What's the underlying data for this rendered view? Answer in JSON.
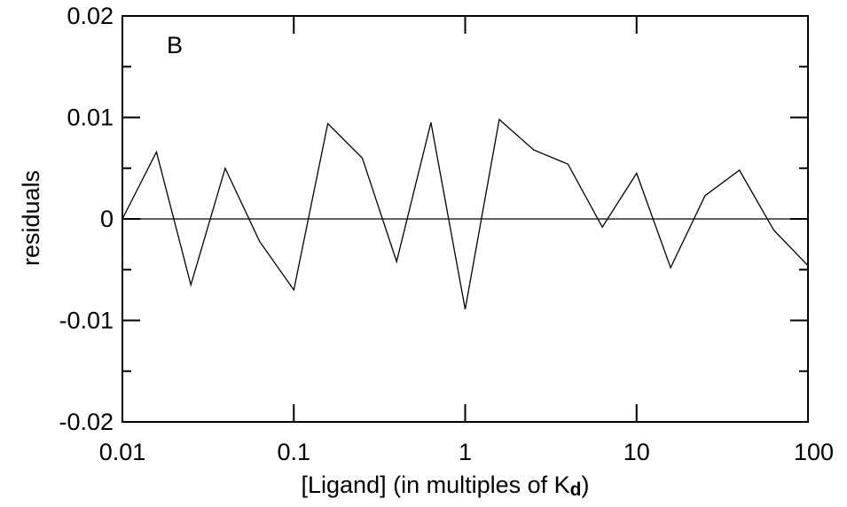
{
  "chart_data": {
    "type": "line",
    "panel_label": "B",
    "xlabel": "[Ligand]   (in multiples of K",
    "xlabel_subscript": "d",
    "xlabel_suffix": ")",
    "ylabel": "residuals",
    "xscale": "log",
    "xlim": [
      0.01,
      100
    ],
    "ylim": [
      -0.02,
      0.02
    ],
    "x_ticks": [
      0.01,
      0.1,
      1,
      10,
      100
    ],
    "x_tick_labels": [
      "0.01",
      "0.1",
      "1",
      "10",
      "100"
    ],
    "y_ticks": [
      -0.02,
      -0.01,
      0,
      0.01,
      0.02
    ],
    "y_tick_labels": [
      "-0.02",
      "-0.01",
      "0",
      "0.01",
      "0.02"
    ],
    "y_minor_ticks": [
      -0.015,
      -0.005,
      0.005,
      0.015
    ],
    "grid": false,
    "zero_line": 0,
    "series": [
      {
        "x": [
          0.01,
          0.0158,
          0.0251,
          0.0398,
          0.0631,
          0.1,
          0.158,
          0.251,
          0.398,
          0.631,
          1,
          1.58,
          2.51,
          3.98,
          6.31,
          10,
          15.8,
          25.1,
          39.8,
          63.1,
          100
        ],
        "y": [
          0.0,
          0.0066,
          -0.0065,
          0.005,
          -0.0022,
          -0.007,
          0.0094,
          0.006,
          -0.0042,
          0.0095,
          -0.0089,
          0.0098,
          0.0068,
          0.0054,
          -0.0008,
          0.0045,
          -0.0048,
          0.0023,
          0.0048,
          -0.0011,
          -0.0046
        ],
        "color": "#000000"
      }
    ]
  }
}
